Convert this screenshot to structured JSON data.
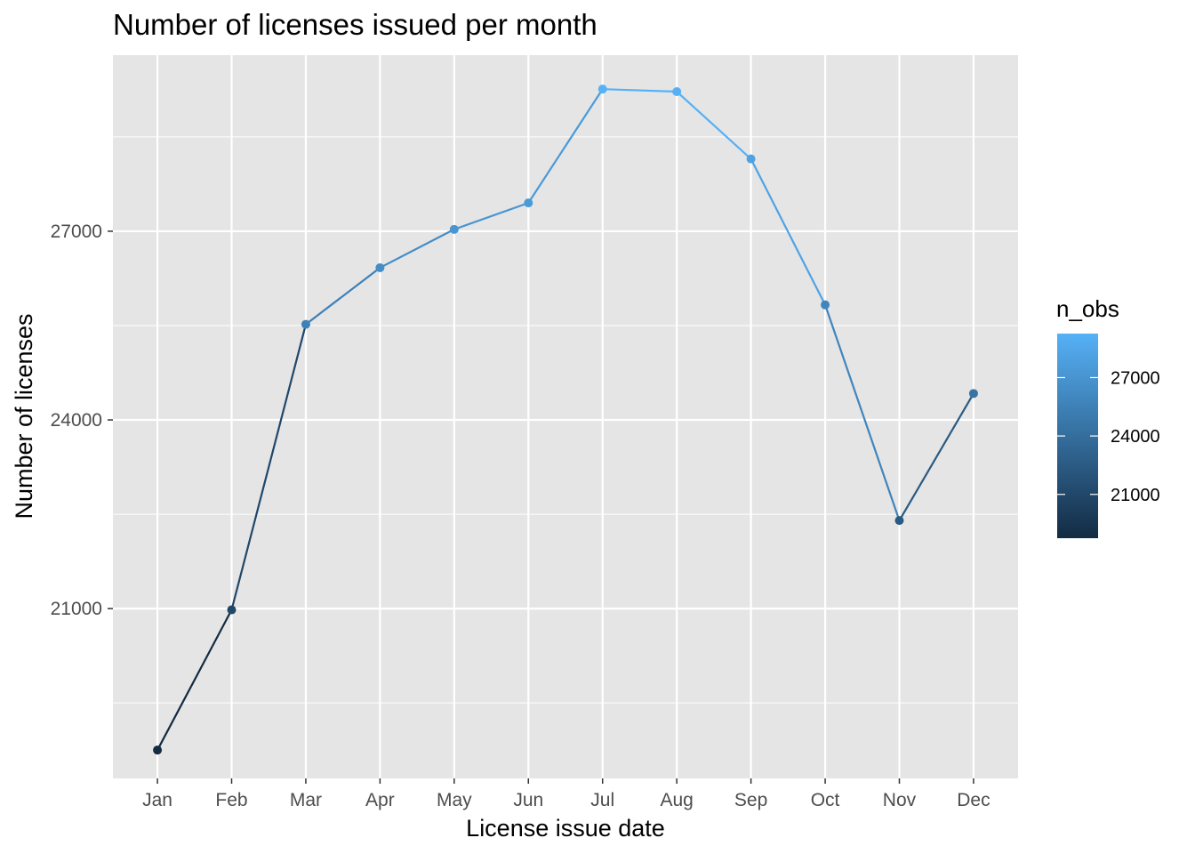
{
  "chart_data": {
    "type": "line",
    "title": "Number of licenses issued per month",
    "xlabel": "License issue date",
    "ylabel": "Number of licenses",
    "categories": [
      "Jan",
      "Feb",
      "Mar",
      "Apr",
      "May",
      "Jun",
      "Jul",
      "Aug",
      "Sep",
      "Oct",
      "Nov",
      "Dec"
    ],
    "values": [
      18750,
      20980,
      25520,
      26420,
      27030,
      27450,
      29260,
      29220,
      28150,
      25830,
      22400,
      24420
    ],
    "ylim": [
      18300,
      29800
    ],
    "yticks": [
      21000,
      24000,
      27000
    ],
    "ytick_labels": [
      "21000",
      "24000",
      "27000"
    ],
    "grid": true,
    "panel_background": "#e5e5e5",
    "grid_color": "#ffffff",
    "legend": {
      "title": "n_obs",
      "position": "right",
      "type": "colorbar",
      "range": [
        18750,
        29260
      ],
      "ticks": [
        21000,
        24000,
        27000
      ],
      "tick_labels": [
        "21000",
        "24000",
        "27000"
      ],
      "color_low": "#132b43",
      "color_high": "#56b1f7"
    }
  }
}
